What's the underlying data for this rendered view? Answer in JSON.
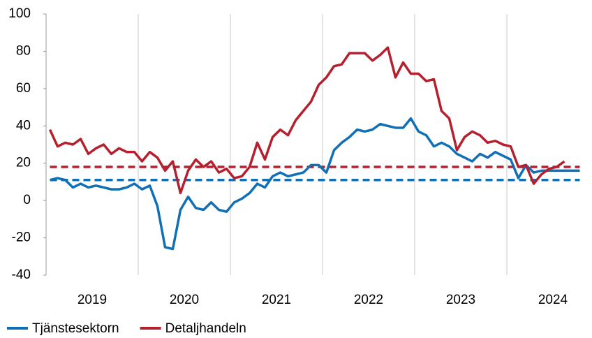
{
  "chart_data": {
    "type": "line",
    "categories": [
      null,
      null,
      null,
      null,
      null,
      "2019",
      null,
      null,
      null,
      null,
      null,
      null,
      null,
      null,
      null,
      null,
      null,
      "2020",
      null,
      null,
      null,
      null,
      null,
      null,
      null,
      null,
      null,
      null,
      null,
      "2021",
      null,
      null,
      null,
      null,
      null,
      null,
      null,
      null,
      null,
      null,
      null,
      "2022",
      null,
      null,
      null,
      null,
      null,
      null,
      null,
      null,
      null,
      null,
      null,
      "2023",
      null,
      null,
      null,
      null,
      null,
      null,
      null,
      null,
      null,
      null,
      null,
      "2024",
      null,
      null,
      null,
      null
    ],
    "series": [
      {
        "name": "Tjänstesektorn",
        "color": "#1170b5",
        "values": [
          11,
          12,
          11,
          7,
          9,
          7,
          8,
          7,
          6,
          6,
          7,
          9,
          6,
          8,
          -3,
          -25,
          -26,
          -5,
          2,
          -4,
          -5,
          -1,
          -5,
          -6,
          -1,
          1,
          4,
          9,
          7,
          13,
          15,
          13,
          14,
          15,
          19,
          19,
          15,
          27,
          31,
          34,
          38,
          37,
          38,
          41,
          40,
          39,
          39,
          44,
          37,
          35,
          29,
          31,
          29,
          25,
          23,
          21,
          25,
          23,
          26,
          24,
          22,
          12,
          19,
          15,
          16,
          16,
          16,
          16,
          16,
          16
        ]
      },
      {
        "name": "Detaljhandeln",
        "color": "#b5202e",
        "values": [
          38,
          29,
          31,
          30,
          33,
          25,
          28,
          30,
          25,
          28,
          26,
          26,
          21,
          26,
          23,
          16,
          21,
          4,
          16,
          22,
          18,
          21,
          15,
          17,
          12,
          13,
          18,
          31,
          22,
          34,
          38,
          35,
          43,
          48,
          53,
          62,
          66,
          72,
          73,
          79,
          79,
          79,
          75,
          78,
          82,
          66,
          74,
          68,
          68,
          64,
          65,
          48,
          44,
          27,
          34,
          37,
          35,
          31,
          32,
          30,
          29,
          18,
          19,
          9,
          14,
          17,
          18,
          21,
          null,
          null
        ]
      }
    ],
    "reference_lines": [
      {
        "value": 11,
        "color": "#1170b5"
      },
      {
        "value": 18,
        "color": "#b5202e"
      }
    ],
    "ylim": [
      -40,
      100
    ],
    "yticks": [
      -40,
      -20,
      0,
      20,
      40,
      60,
      80,
      100
    ],
    "grid": true
  }
}
